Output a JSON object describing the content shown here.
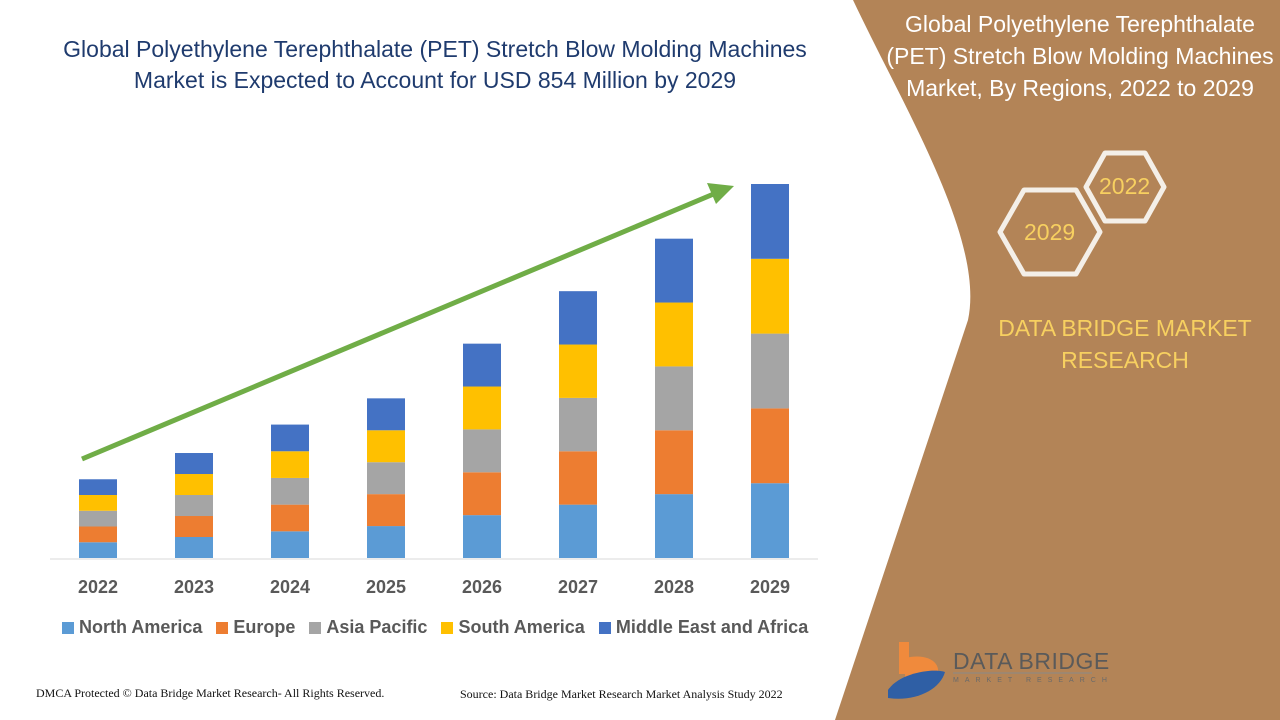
{
  "title": "Global Polyethylene Terephthalate (PET) Stretch Blow Molding Machines Market is Expected to Account for USD 854 Million by 2029",
  "panel": {
    "title": "Global Polyethylene Terephthalate (PET) Stretch Blow Molding Machines Market, By Regions, 2022 to 2029",
    "hex_left": "2029",
    "hex_right": "2022",
    "brand": "DATA BRIDGE MARKET RESEARCH",
    "logo_text": "DATA BRIDGE",
    "logo_sub": "MARKET RESEARCH",
    "background_color": "#b38457",
    "accent_color": "#f7d060"
  },
  "footer": {
    "left": "DMCA Protected © Data Bridge Market Research- All Rights Reserved.",
    "right": "Source: Data Bridge Market Research Market Analysis Study 2022"
  },
  "chart_data": {
    "type": "bar",
    "stacked": true,
    "categories": [
      "2022",
      "2023",
      "2024",
      "2025",
      "2026",
      "2027",
      "2028",
      "2029"
    ],
    "series": [
      {
        "name": "North America",
        "color": "#5b9bd5",
        "values": [
          36,
          48,
          61,
          73,
          98,
          122,
          146,
          171
        ]
      },
      {
        "name": "Europe",
        "color": "#ed7d31",
        "values": [
          36,
          48,
          61,
          73,
          98,
          122,
          146,
          171
        ]
      },
      {
        "name": "Asia Pacific",
        "color": "#a5a5a5",
        "values": [
          36,
          48,
          61,
          73,
          98,
          122,
          146,
          171
        ]
      },
      {
        "name": "South America",
        "color": "#ffc000",
        "values": [
          36,
          48,
          61,
          73,
          98,
          122,
          146,
          171
        ]
      },
      {
        "name": "Middle East and Africa",
        "color": "#4472c4",
        "values": [
          36,
          48,
          61,
          73,
          98,
          122,
          146,
          171
        ]
      }
    ],
    "ylim": [
      0,
      855
    ],
    "grid": false,
    "legend": "bottom",
    "trend_arrow_color": "#70ad47"
  }
}
